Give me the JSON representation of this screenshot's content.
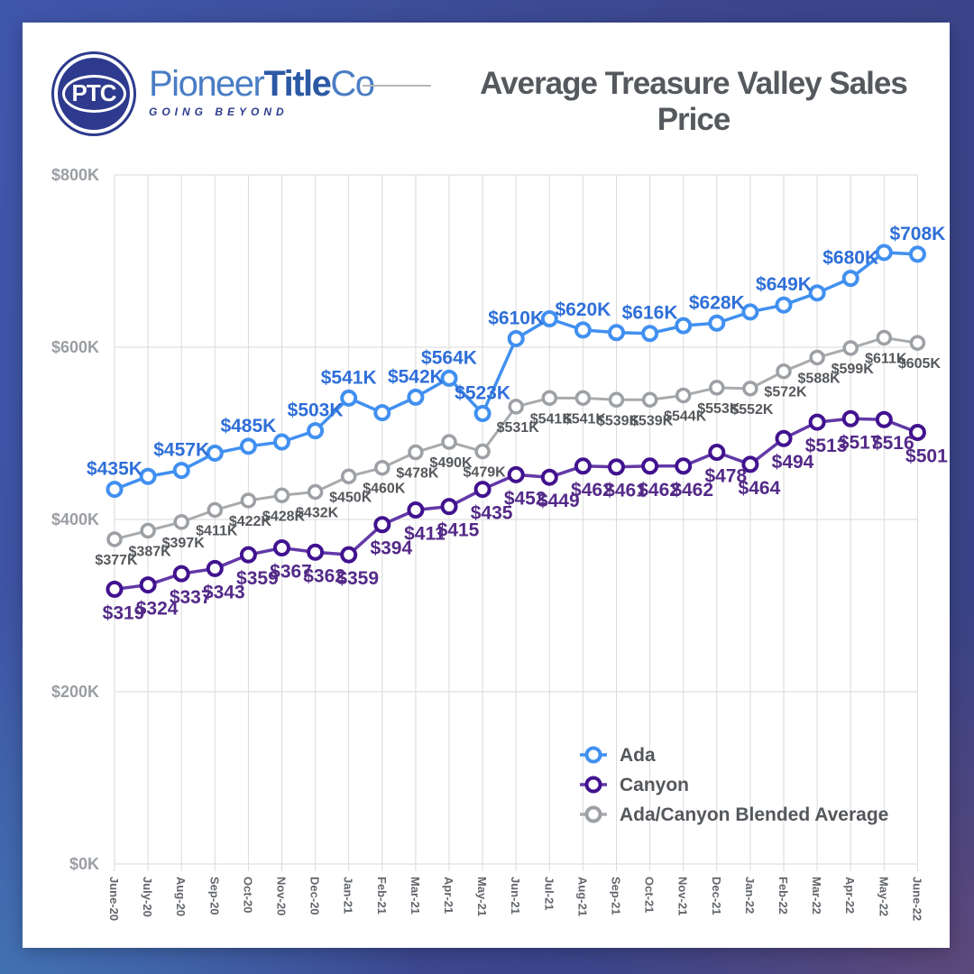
{
  "header": {
    "logo": {
      "badge_text": "PTC",
      "brand_part1": "Pioneer",
      "brand_part2": "Title",
      "brand_part3": "Co",
      "tagline": "GOING BEYOND"
    }
  },
  "chart_data": {
    "type": "line",
    "title": "Average Treasure Valley Sales Price",
    "x_categories": [
      "June-20",
      "July-20",
      "Aug-20",
      "Sep-20",
      "Oct-20",
      "Nov-20",
      "Dec-20",
      "Jan-21",
      "Feb-21",
      "Mar-21",
      "Apr-21",
      "May-21",
      "Jun-21",
      "Jul-21",
      "Aug-21",
      "Sep-21",
      "Oct-21",
      "Nov-21",
      "Dec-21",
      "Jan-22",
      "Feb-22",
      "Mar-22",
      "Apr-22",
      "May-22",
      "June-22"
    ],
    "y_ticks": [
      "$0K",
      "$200K",
      "$400K",
      "$600K",
      "$800K"
    ],
    "ylim": [
      0,
      800
    ],
    "y_unit": "thousand USD",
    "grid": true,
    "legend_position": "inside-lower-right",
    "series": [
      {
        "name": "Ada",
        "line_color": "#4190f0",
        "marker_color": "#4190f0",
        "label_color": "#2f6fd8",
        "label_size": 21,
        "label_dx": 0,
        "label_dy": -16,
        "values": [
          435,
          450,
          457,
          477,
          485,
          490,
          503,
          541,
          524,
          542,
          564,
          523,
          610,
          633,
          620,
          617,
          616,
          625,
          628,
          641,
          649,
          663,
          680,
          710,
          708
        ],
        "point_labels": [
          "$435K",
          null,
          "$457K",
          null,
          "$485K",
          null,
          "$503K",
          "$541K",
          null,
          "$542K",
          "$564K",
          "$523K",
          "$610K",
          null,
          "$620K",
          null,
          "$616K",
          null,
          "$628K",
          null,
          "$649K",
          null,
          "$680K",
          null,
          "$708K"
        ]
      },
      {
        "name": "Canyon",
        "line_color": "#6239a8",
        "marker_color": "#41128f",
        "label_color": "#532a88",
        "label_size": 21,
        "label_dx": 10,
        "label_dy": 33,
        "values": [
          319,
          324,
          337,
          343,
          359,
          367,
          362,
          359,
          394,
          411,
          415,
          435,
          452,
          449,
          462,
          461,
          462,
          462,
          478,
          464,
          494,
          513,
          517,
          516,
          501
        ],
        "point_labels": [
          "$319",
          "$324",
          "$337",
          "$343",
          "$359",
          "$367",
          "$362",
          "$359",
          "$394",
          "$411",
          "$415",
          "$435",
          "$452",
          "$449",
          "$462",
          "$461",
          "$462",
          "$462",
          "$478",
          "$464",
          "$494",
          "$513",
          "$517",
          "$516",
          "$501"
        ]
      },
      {
        "name": "Ada/Canyon Blended Average",
        "line_color": "#a8abae",
        "marker_color": "#9da0a4",
        "label_color": "#55585c",
        "label_size": 16,
        "label_dx": 2,
        "label_dy": 28,
        "values": [
          377,
          387,
          397,
          411,
          422,
          428,
          432,
          450,
          460,
          478,
          490,
          479,
          531,
          541,
          541,
          539,
          539,
          544,
          553,
          552,
          572,
          588,
          599,
          611,
          605
        ],
        "point_labels": [
          "$377K",
          "$387K",
          "$397K",
          "$411K",
          "$422K",
          "$428K",
          "$432K",
          "$450K",
          "$460K",
          "$478K",
          "$490K",
          "$479K",
          "$531K",
          "$541K",
          "$541K",
          "$539K",
          "$539K",
          "$544K",
          "$553K",
          "$552K",
          "$572K",
          "$588K",
          "$599K",
          "$611K",
          "$605K"
        ]
      }
    ],
    "style": {
      "grid_color": "#dadada",
      "axis_tick_color": "#9b9ea3",
      "month_label_color": "#63666b",
      "legend_text_color": "#54575b"
    }
  }
}
